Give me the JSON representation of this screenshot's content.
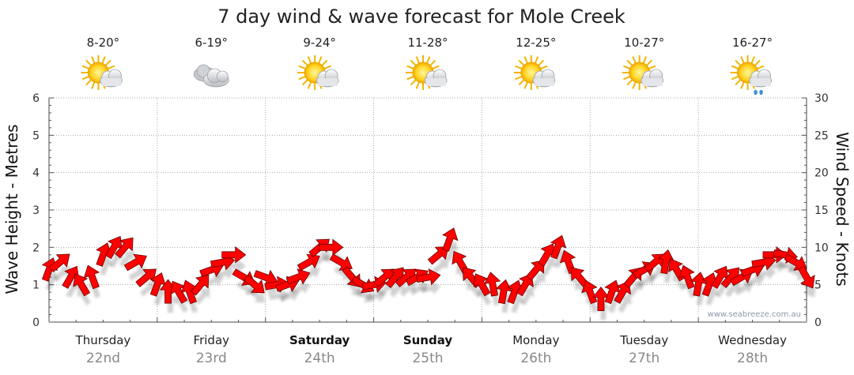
{
  "chart_data": {
    "type": "line",
    "title": "7 day wind & wave forecast for Mole Creek",
    "ylabel_left": "Wave Height - Metres",
    "ylabel_right": "Wind Speed - Knots",
    "ylim_left": [
      0,
      6
    ],
    "ylim_right": [
      0,
      30
    ],
    "yticks_left": [
      "0",
      "1",
      "2",
      "3",
      "4",
      "5",
      "6"
    ],
    "yticks_right": [
      "0",
      "5",
      "10",
      "15",
      "20",
      "25",
      "30"
    ],
    "credit": "www.seabreeze.com.au",
    "days": [
      {
        "name": "Thursday",
        "date": "22nd",
        "bold": false,
        "temp": "8-20°",
        "icon": "sun-cloud-icon"
      },
      {
        "name": "Friday",
        "date": "23rd",
        "bold": false,
        "temp": "6-19°",
        "icon": "cloud-icon"
      },
      {
        "name": "Saturday",
        "date": "24th",
        "bold": true,
        "temp": "9-24°",
        "icon": "sun-cloud-icon"
      },
      {
        "name": "Sunday",
        "date": "25th",
        "bold": true,
        "temp": "11-28°",
        "icon": "sun-cloud-icon"
      },
      {
        "name": "Monday",
        "date": "26th",
        "bold": false,
        "temp": "12-25°",
        "icon": "sun-cloud-icon"
      },
      {
        "name": "Tuesday",
        "date": "27th",
        "bold": false,
        "temp": "10-27°",
        "icon": "sun-cloud-icon"
      },
      {
        "name": "Wednesday",
        "date": "28th",
        "bold": false,
        "temp": "16-27°",
        "icon": "sun-cloud-rain-icon"
      }
    ],
    "wind_series": {
      "name": "Wind speed (knots)",
      "color": "#ff0000",
      "x": [
        0,
        0.1,
        0.2,
        0.3,
        0.4,
        0.5,
        0.6,
        0.7,
        0.8,
        0.9,
        1,
        1.1,
        1.2,
        1.3,
        1.4,
        1.5,
        1.6,
        1.7,
        1.8,
        1.9,
        2,
        2.1,
        2.2,
        2.3,
        2.4,
        2.5,
        2.6,
        2.7,
        2.8,
        2.9,
        3,
        3.1,
        3.2,
        3.3,
        3.4,
        3.5,
        3.6,
        3.7,
        3.8,
        3.9,
        4,
        4.1,
        4.2,
        4.3,
        4.4,
        4.5,
        4.6,
        4.7,
        4.8,
        4.9,
        5,
        5.1,
        5.2,
        5.3,
        5.4,
        5.5,
        5.6,
        5.7,
        5.8,
        5.9,
        6,
        6.1,
        6.2,
        6.3,
        6.4,
        6.5,
        6.6,
        6.7,
        6.8,
        6.9,
        7
      ],
      "values": [
        7,
        8,
        6,
        5,
        6,
        9,
        10,
        10,
        8,
        6,
        5,
        4,
        4,
        4,
        5,
        7,
        8,
        9,
        6,
        5,
        6,
        5,
        5,
        6,
        8,
        10,
        10,
        8,
        6,
        5,
        5,
        6,
        6,
        6,
        6,
        6,
        9,
        11,
        8,
        6,
        5,
        5,
        4,
        4,
        5,
        7,
        9,
        10,
        8,
        6,
        4,
        3,
        4,
        4,
        6,
        7,
        8,
        8,
        7,
        6,
        5,
        5,
        6,
        6,
        6,
        7,
        8,
        9,
        9,
        8,
        6
      ],
      "directions_deg": [
        200,
        230,
        210,
        150,
        160,
        200,
        210,
        220,
        240,
        230,
        200,
        180,
        150,
        160,
        220,
        250,
        260,
        270,
        300,
        310,
        290,
        260,
        250,
        250,
        240,
        230,
        270,
        300,
        320,
        300,
        260,
        230,
        220,
        230,
        240,
        260,
        230,
        200,
        150,
        140,
        150,
        170,
        190,
        200,
        210,
        220,
        210,
        200,
        160,
        140,
        160,
        180,
        200,
        210,
        220,
        240,
        230,
        190,
        150,
        160,
        190,
        200,
        210,
        220,
        240,
        250,
        260,
        270,
        280,
        300,
        330
      ]
    }
  }
}
